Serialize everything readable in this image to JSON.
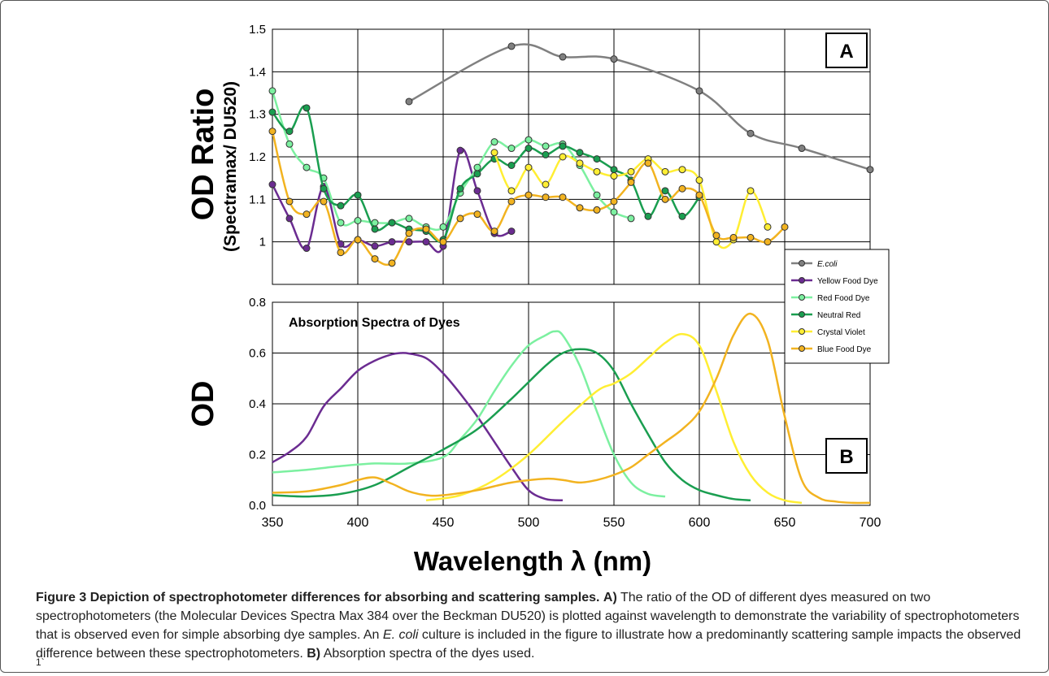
{
  "caption": {
    "figure_label": "Figure 3",
    "title": "Depiction of spectrophotometer differences for absorbing and scattering samples.",
    "part_a_label": "A)",
    "part_a_text_1": "The ratio of the OD of different dyes measured on two spectrophotometers (the Molecular Devices Spectra Max 384 over the Beckman DU520) is plotted against wavelength to demonstrate the variability of spectrophotometers that is observed even for simple absorbing dye samples. An ",
    "part_a_italic": "E. coli",
    "part_a_text_2": " culture is included in the figure to illustrate how a predominantly scattering sample impacts the observed difference between these spectrophotometers.",
    "part_b_label": "B)",
    "part_b_text": "Absorption spectra of the dyes used.",
    "footnote": "1`"
  },
  "colors": {
    "ecoli": "#808080",
    "yellow_dye": "#6b2c91",
    "red_dye": "#7cf0a0",
    "neutral_red": "#1a9e50",
    "crystal_violet": "#ffee33",
    "blue_dye": "#f2b320"
  },
  "chart_data": [
    {
      "type": "line",
      "panel_label": "A",
      "ylabel": "OD Ratio",
      "ylabel_sub": "(Spectramax/ DU520)",
      "xlim": [
        350,
        700
      ],
      "ylim": [
        0.9,
        1.5
      ],
      "yticks": [
        1,
        1.1,
        1.2,
        1.3,
        1.4,
        1.5
      ],
      "ytick_labels": [
        "1",
        "1.1",
        "1.2",
        "1.3",
        "1.4",
        "1.5"
      ],
      "grid": true,
      "markers": true,
      "legend_position": "right",
      "series": [
        {
          "name": "E.coli",
          "italic": true,
          "color_key": "ecoli",
          "x": [
            430,
            490,
            520,
            550,
            600,
            630,
            660,
            700
          ],
          "y": [
            1.33,
            1.46,
            1.435,
            1.43,
            1.355,
            1.255,
            1.22,
            1.17
          ]
        },
        {
          "name": "Yellow Food Dye",
          "color_key": "yellow_dye",
          "x": [
            350,
            360,
            370,
            380,
            390,
            400,
            410,
            420,
            430,
            440,
            450,
            460,
            470,
            480,
            490
          ],
          "y": [
            1.135,
            1.055,
            0.985,
            1.13,
            0.995,
            1.005,
            0.99,
            1.0,
            1.0,
            1.0,
            0.99,
            1.215,
            1.12,
            1.02,
            1.025
          ]
        },
        {
          "name": "Red Food Dye",
          "color_key": "red_dye",
          "x": [
            350,
            360,
            370,
            380,
            390,
            400,
            410,
            420,
            430,
            440,
            450,
            460,
            470,
            480,
            490,
            500,
            510,
            520,
            530,
            540,
            550,
            560
          ],
          "y": [
            1.355,
            1.23,
            1.175,
            1.15,
            1.045,
            1.05,
            1.045,
            1.045,
            1.055,
            1.035,
            1.035,
            1.115,
            1.175,
            1.235,
            1.22,
            1.24,
            1.225,
            1.23,
            1.18,
            1.11,
            1.07,
            1.055
          ]
        },
        {
          "name": "Neutral Red",
          "color_key": "neutral_red",
          "x": [
            350,
            360,
            370,
            380,
            390,
            400,
            410,
            420,
            430,
            440,
            450,
            460,
            470,
            480,
            490,
            500,
            510,
            520,
            530,
            540,
            550,
            560,
            570,
            580,
            590,
            600
          ],
          "y": [
            1.305,
            1.26,
            1.315,
            1.125,
            1.085,
            1.11,
            1.03,
            1.045,
            1.03,
            1.025,
            1.005,
            1.125,
            1.16,
            1.195,
            1.18,
            1.22,
            1.205,
            1.225,
            1.21,
            1.195,
            1.17,
            1.145,
            1.06,
            1.12,
            1.06,
            1.105
          ]
        },
        {
          "name": "Crystal Violet",
          "color_key": "crystal_violet",
          "x": [
            480,
            490,
            500,
            510,
            520,
            530,
            540,
            550,
            560,
            570,
            580,
            590,
            600,
            610,
            620,
            630,
            640
          ],
          "y": [
            1.21,
            1.12,
            1.175,
            1.135,
            1.2,
            1.185,
            1.165,
            1.155,
            1.165,
            1.195,
            1.165,
            1.17,
            1.145,
            1.0,
            1.005,
            1.12,
            1.035
          ]
        },
        {
          "name": "Blue Food Dye",
          "color_key": "blue_dye",
          "x": [
            350,
            360,
            370,
            380,
            390,
            400,
            410,
            420,
            430,
            440,
            450,
            460,
            470,
            480,
            490,
            500,
            510,
            520,
            530,
            540,
            550,
            560,
            570,
            580,
            590,
            600,
            610,
            620,
            630,
            640,
            650
          ],
          "y": [
            1.26,
            1.095,
            1.065,
            1.095,
            0.975,
            1.005,
            0.96,
            0.95,
            1.02,
            1.03,
            1.0,
            1.055,
            1.065,
            1.025,
            1.095,
            1.11,
            1.105,
            1.105,
            1.08,
            1.075,
            1.095,
            1.14,
            1.185,
            1.1,
            1.125,
            1.11,
            1.015,
            1.01,
            1.01,
            1.0,
            1.035
          ]
        }
      ]
    },
    {
      "type": "line",
      "panel_label": "B",
      "title": "Absorption Spectra of Dyes",
      "ylabel": "OD",
      "xlabel": "Wavelength λ (nm)",
      "xlim": [
        350,
        700
      ],
      "ylim": [
        0,
        0.8
      ],
      "xticks": [
        350,
        400,
        450,
        500,
        550,
        600,
        650,
        700
      ],
      "xtick_labels": [
        "350",
        "400",
        "450",
        "500",
        "550",
        "600",
        "650",
        "700"
      ],
      "yticks": [
        0,
        0.2,
        0.4,
        0.6,
        0.8
      ],
      "ytick_labels": [
        "0.0",
        "0.2",
        "0.4",
        "0.6",
        "0.8"
      ],
      "grid": true,
      "markers": false,
      "series": [
        {
          "color_key": "yellow_dye",
          "x": [
            350,
            360,
            370,
            380,
            390,
            400,
            410,
            420,
            425,
            430,
            440,
            450,
            460,
            470,
            480,
            490,
            500,
            510,
            520
          ],
          "y": [
            0.17,
            0.21,
            0.27,
            0.39,
            0.46,
            0.53,
            0.57,
            0.595,
            0.6,
            0.598,
            0.58,
            0.52,
            0.44,
            0.35,
            0.25,
            0.15,
            0.06,
            0.025,
            0.02
          ]
        },
        {
          "color_key": "red_dye",
          "x": [
            350,
            370,
            390,
            410,
            430,
            450,
            460,
            470,
            480,
            490,
            500,
            510,
            515,
            520,
            530,
            540,
            550,
            560,
            570,
            580
          ],
          "y": [
            0.13,
            0.14,
            0.155,
            0.165,
            0.165,
            0.19,
            0.26,
            0.34,
            0.45,
            0.55,
            0.63,
            0.67,
            0.685,
            0.67,
            0.55,
            0.37,
            0.2,
            0.09,
            0.045,
            0.035
          ]
        },
        {
          "color_key": "neutral_red",
          "x": [
            350,
            370,
            390,
            410,
            430,
            450,
            470,
            490,
            510,
            520,
            530,
            540,
            550,
            560,
            570,
            580,
            590,
            600,
            610,
            620,
            630
          ],
          "y": [
            0.04,
            0.035,
            0.045,
            0.08,
            0.15,
            0.22,
            0.3,
            0.42,
            0.55,
            0.6,
            0.615,
            0.6,
            0.53,
            0.4,
            0.28,
            0.17,
            0.1,
            0.06,
            0.04,
            0.025,
            0.02
          ]
        },
        {
          "color_key": "crystal_violet",
          "x": [
            440,
            460,
            480,
            500,
            520,
            540,
            550,
            560,
            570,
            580,
            590,
            600,
            610,
            620,
            630,
            640,
            650,
            660
          ],
          "y": [
            0.02,
            0.04,
            0.1,
            0.2,
            0.33,
            0.45,
            0.48,
            0.52,
            0.58,
            0.64,
            0.675,
            0.63,
            0.45,
            0.25,
            0.12,
            0.05,
            0.02,
            0.01
          ]
        },
        {
          "color_key": "blue_dye",
          "x": [
            350,
            370,
            390,
            400,
            410,
            420,
            430,
            440,
            450,
            470,
            490,
            510,
            520,
            530,
            540,
            550,
            560,
            570,
            580,
            590,
            600,
            610,
            620,
            630,
            640,
            650,
            660,
            670,
            680,
            690,
            700
          ],
          "y": [
            0.05,
            0.055,
            0.08,
            0.1,
            0.11,
            0.085,
            0.055,
            0.04,
            0.04,
            0.06,
            0.09,
            0.105,
            0.1,
            0.09,
            0.1,
            0.12,
            0.15,
            0.2,
            0.25,
            0.3,
            0.37,
            0.5,
            0.67,
            0.755,
            0.65,
            0.35,
            0.1,
            0.03,
            0.015,
            0.01,
            0.01
          ]
        }
      ]
    }
  ]
}
